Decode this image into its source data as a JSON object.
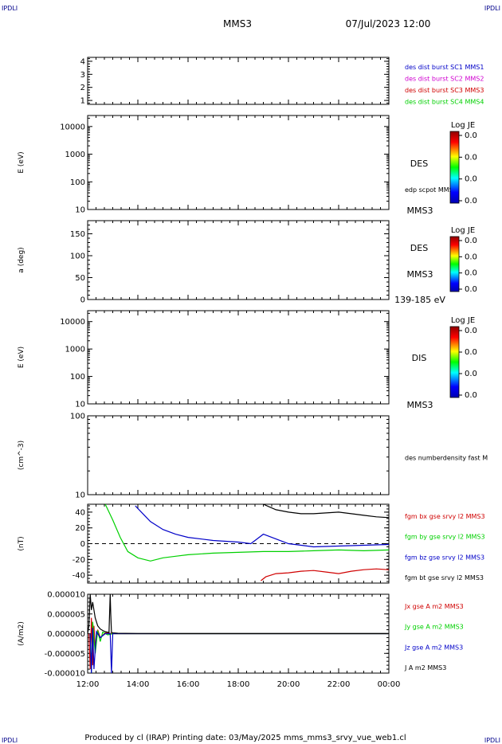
{
  "header": {
    "corner_tl": "IPDLI",
    "corner_tr": "IPDLI",
    "corner_bl": "IPDLI",
    "corner_br": "IPDLI",
    "spacecraft": "MMS3",
    "datetime": "07/Jul/2023 12:00"
  },
  "footer": {
    "text": "Produced by cl (IRAP)   Printing date: 03/May/2025   mms_mms3_srvy_vue_web1.cl"
  },
  "colors": {
    "blue": "#0000c8",
    "magenta": "#d000d0",
    "red": "#d00000",
    "green": "#00d000",
    "black": "#000000"
  },
  "chart_data": [
    {
      "id": "panel1",
      "type": "line",
      "ylim": [
        0.7,
        4.3
      ],
      "yticks": [
        "1",
        "2",
        "3",
        "4"
      ],
      "legend": [
        {
          "text": "des dist burst SC1 MMS1",
          "color": "#0000c8"
        },
        {
          "text": "des dist burst SC2 MMS2",
          "color": "#d000d0"
        },
        {
          "text": "des dist burst SC3 MMS3",
          "color": "#d00000"
        },
        {
          "text": "des dist burst SC4 MMS4",
          "color": "#00d000"
        }
      ]
    },
    {
      "id": "panel2",
      "type": "heatmap",
      "ylabel": "E (eV)",
      "yscale": "log",
      "ylim": [
        10,
        25000
      ],
      "yticks": [
        "10",
        "100",
        "1000",
        "10000"
      ],
      "side_labels": [
        "DES",
        "MMS3"
      ],
      "overlay_label": "edp scpot MMS3",
      "colorbar": {
        "title": "Log JE",
        "ticks": [
          "0.0",
          "0.0",
          "0.0",
          "0.0"
        ]
      }
    },
    {
      "id": "panel3",
      "type": "heatmap",
      "ylabel": "a (deg)",
      "ylim": [
        0,
        180
      ],
      "yticks": [
        "0",
        "50",
        "100",
        "150"
      ],
      "side_labels": [
        "DES",
        "MMS3",
        "139-185 eV"
      ],
      "colorbar": {
        "title": "Log JE",
        "ticks": [
          "0.0",
          "0.0",
          "0.0",
          "0.0"
        ]
      }
    },
    {
      "id": "panel4",
      "type": "heatmap",
      "ylabel": "E (eV)",
      "yscale": "log",
      "ylim": [
        10,
        25000
      ],
      "yticks": [
        "10",
        "100",
        "1000",
        "10000"
      ],
      "side_labels": [
        "DIS",
        "MMS3"
      ],
      "colorbar": {
        "title": "Log JE",
        "ticks": [
          "0.0",
          "0.0",
          "0.0",
          "0.0"
        ]
      }
    },
    {
      "id": "panel5",
      "type": "line",
      "ylabel": "(cm^-3)",
      "yscale": "log",
      "ylim": [
        10,
        100
      ],
      "yticks": [
        "10",
        "100"
      ],
      "legend": [
        {
          "text": "des numberdensity fast M",
          "color": "#000000"
        }
      ]
    },
    {
      "id": "panel6",
      "type": "line",
      "ylabel": "(nT)",
      "ylim": [
        -50,
        50
      ],
      "yticks": [
        "-40",
        "-20",
        "0",
        "20",
        "40"
      ],
      "zero_line": true,
      "x_hours": [
        0,
        12
      ],
      "series": [
        {
          "name": "fgm bx gse srvy l2 MMS3",
          "color": "#d00000",
          "x": [
            6.9,
            7.1,
            7.5,
            8.0,
            8.5,
            9.0,
            9.5,
            10.0,
            10.5,
            11.0,
            11.5,
            12.0
          ],
          "y": [
            -47,
            -42,
            -38,
            -37,
            -35,
            -34,
            -36,
            -38,
            -35,
            -33,
            -32,
            -33
          ]
        },
        {
          "name": "fgm by gse srvy l2 MMS3",
          "color": "#00d000",
          "x": [
            0.7,
            1.0,
            1.3,
            1.6,
            2.0,
            2.5,
            3.0,
            3.5,
            4.0,
            5.0,
            6.0,
            7.0,
            8.0,
            9.0,
            10.0,
            11.0,
            12.0
          ],
          "y": [
            50,
            30,
            8,
            -10,
            -18,
            -22,
            -18,
            -16,
            -14,
            -12,
            -11,
            -10,
            -10,
            -9,
            -8,
            -9,
            -8
          ]
        },
        {
          "name": "fgm bz gse srvy l2 MMS3",
          "color": "#0000c8",
          "x": [
            1.9,
            2.2,
            2.5,
            3.0,
            3.5,
            4.0,
            5.0,
            6.0,
            6.5,
            7.0,
            7.5,
            8.0,
            9.0,
            10.0,
            11.0,
            12.0
          ],
          "y": [
            48,
            38,
            28,
            18,
            12,
            8,
            4,
            2,
            0,
            12,
            6,
            0,
            -4,
            -3,
            -2,
            -1
          ]
        },
        {
          "name": "fgm bt gse srvy l2 MMS3",
          "color": "#000000",
          "x": [
            7.0,
            7.5,
            8.0,
            8.5,
            9.0,
            9.5,
            10.0,
            10.5,
            11.0,
            11.5,
            12.0
          ],
          "y": [
            50,
            43,
            40,
            38,
            38,
            39,
            40,
            38,
            36,
            34,
            33
          ]
        }
      ]
    },
    {
      "id": "panel7",
      "type": "line",
      "ylabel": "(A/m2)",
      "ylim": [
        -1e-05,
        1e-05
      ],
      "yticks": [
        "-0.000010",
        "-0.000005",
        "0.000000",
        "0.000005",
        "0.000010"
      ],
      "xticks": [
        "12:00",
        "14:00",
        "16:00",
        "18:00",
        "20:00",
        "22:00",
        "00:00"
      ],
      "x_hours": [
        0,
        12
      ],
      "series": [
        {
          "name": "Jx gse A m2 MMS3",
          "color": "#d00000",
          "x": [
            0.05,
            0.1,
            0.15,
            0.2,
            0.25,
            0.3,
            0.4,
            0.5,
            0.7,
            1.0,
            2.0,
            6.0,
            12.0
          ],
          "y": [
            0.0,
            -9e-06,
            4e-06,
            -8e-06,
            2e-06,
            -4e-06,
            1e-06,
            -1e-06,
            2e-07,
            0.0,
            0.0,
            0.0,
            0.0
          ]
        },
        {
          "name": "Jy gse A m2 MMS3",
          "color": "#00d000",
          "x": [
            0.1,
            0.15,
            0.2,
            0.3,
            0.4,
            0.5,
            0.6,
            0.8,
            1.0,
            2.0,
            6.0,
            12.0
          ],
          "y": [
            0.0,
            -1e-05,
            3e-06,
            -5e-06,
            8e-07,
            -2e-06,
            4e-07,
            -3e-07,
            0.0,
            0.0,
            0.0,
            0.0
          ]
        },
        {
          "name": "Jz gse A m2 MMS3",
          "color": "#0000c8",
          "x": [
            0.1,
            0.15,
            0.2,
            0.25,
            0.35,
            0.5,
            0.7,
            0.9,
            0.95,
            1.0,
            2.0,
            6.0,
            12.0
          ],
          "y": [
            0.0,
            -1e-05,
            1.5e-06,
            -9e-06,
            5e-07,
            -1e-06,
            0.0,
            0.0,
            -1e-05,
            0.0,
            0.0,
            0.0,
            0.0
          ]
        },
        {
          "name": "J A m2 MMS3",
          "color": "#000000",
          "x": [
            0.0,
            0.05,
            0.1,
            0.15,
            0.2,
            0.25,
            0.3,
            0.4,
            0.5,
            0.6,
            0.7,
            0.85,
            0.9,
            0.92,
            0.95,
            1.0,
            1.2,
            1.5,
            2.0,
            4.0,
            6.0,
            8.0,
            10.0,
            12.0
          ],
          "y": [
            0.0,
            2e-06,
            1e-05,
            6e-06,
            8e-06,
            6e-06,
            4e-06,
            2e-06,
            1.2e-06,
            8e-07,
            5e-07,
            3e-07,
            1e-05,
            5e-06,
            3e-07,
            2e-07,
            1e-07,
            8e-08,
            5e-08,
            3e-08,
            2e-08,
            2e-08,
            2e-08,
            2e-08
          ]
        }
      ]
    }
  ]
}
